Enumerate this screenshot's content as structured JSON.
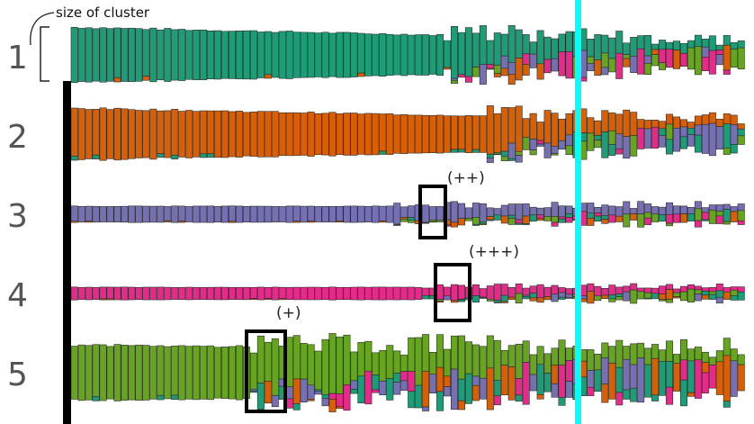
{
  "diagram": {
    "annotation_size_label": "size of cluster",
    "cluster_labels": [
      "1",
      "2",
      "3",
      "4",
      "5"
    ],
    "markers": [
      "(++)",
      "(+++)",
      "(+)"
    ],
    "colors": {
      "teal": "#1b9e77",
      "orange": "#d95f02",
      "purple": "#7570b3",
      "pink": "#e7298a",
      "green": "#66a61e",
      "axis_black": "#000000",
      "cyan_line": "#00ffff",
      "bar_stroke": "#2b2b2b"
    }
  }
}
